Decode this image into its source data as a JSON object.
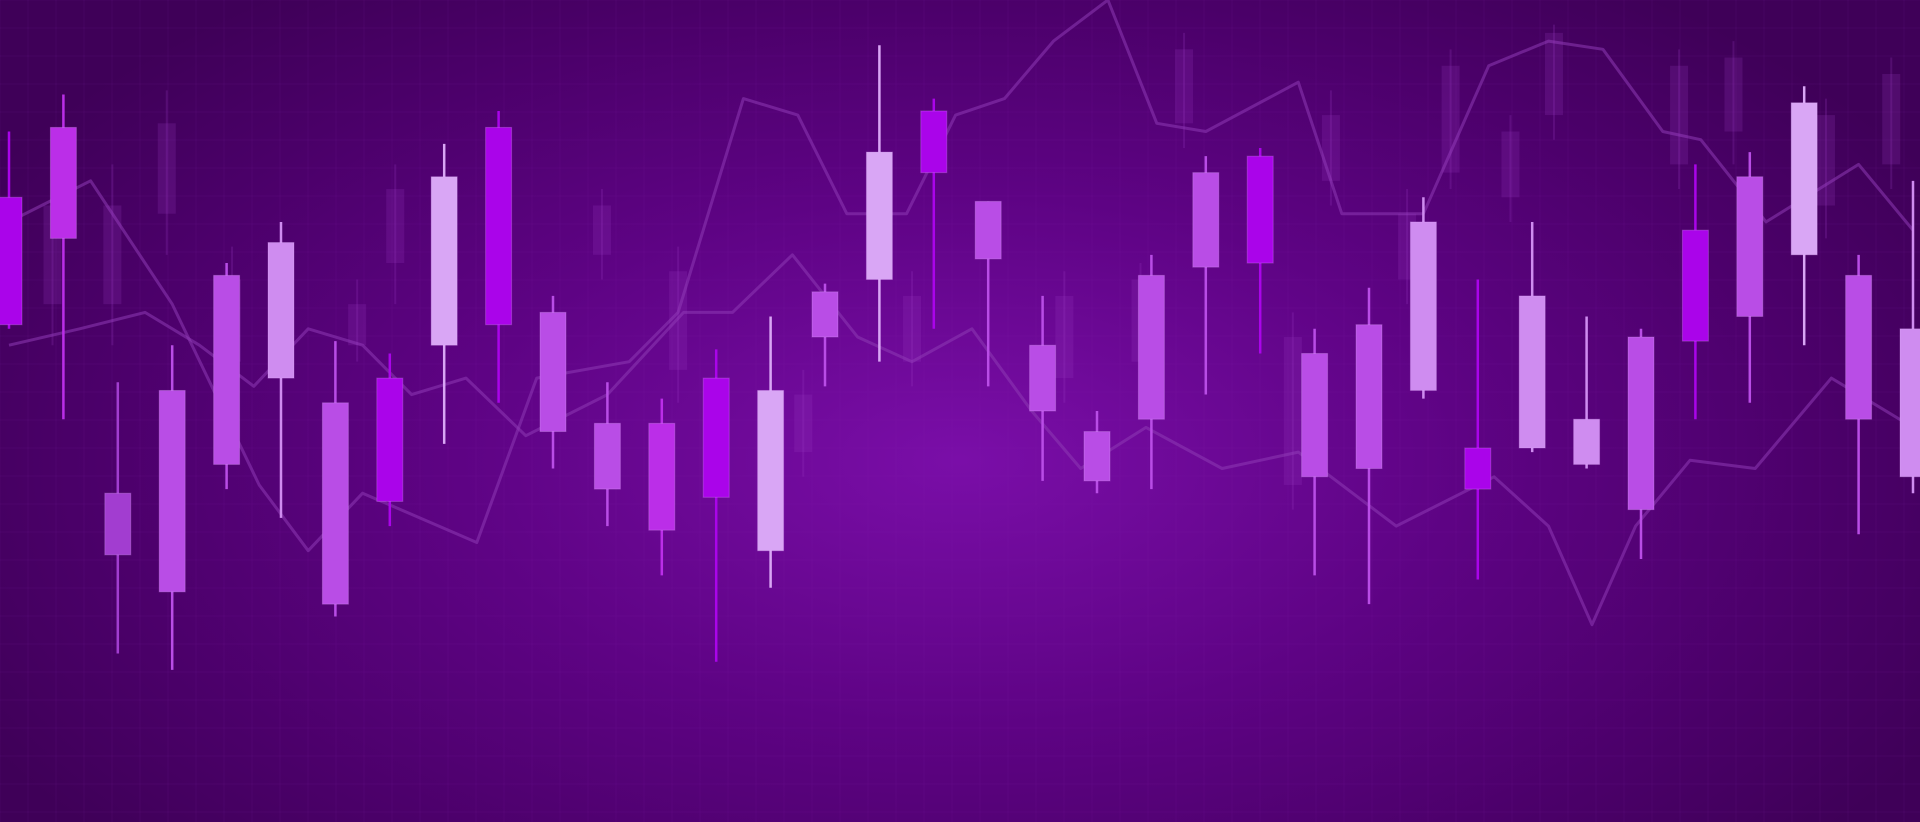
{
  "colors": {
    "background": "#3f0058",
    "background_glow": "#7a0ea8",
    "grid": "#8a2bb0",
    "background_line": "#8e3ab4",
    "candle_palette": [
      "#aa04ea",
      "#b94de6",
      "#cf8cf0",
      "#bb2ee8",
      "#d9a6f5",
      "#a23dd0"
    ]
  },
  "chart_data": {
    "type": "candlestick",
    "title": "",
    "xlabel": "",
    "ylabel": "",
    "xlim": [
      0,
      35
    ],
    "ylim": [
      0,
      100
    ],
    "grid": true,
    "legend": "none",
    "tick_labels": [],
    "candles": [
      {
        "x": 0,
        "open": 60.5,
        "close": 76.0,
        "high": 84.0,
        "low": 60.0,
        "shade": 0
      },
      {
        "x": 1,
        "open": 71.0,
        "close": 84.5,
        "high": 88.5,
        "low": 49.0,
        "shade": 3
      },
      {
        "x": 2,
        "open": 32.5,
        "close": 40.0,
        "high": 53.5,
        "low": 20.5,
        "shade": 5
      },
      {
        "x": 3,
        "open": 28.0,
        "close": 52.5,
        "high": 58.0,
        "low": 18.5,
        "shade": 1
      },
      {
        "x": 4,
        "open": 43.5,
        "close": 66.5,
        "high": 68.0,
        "low": 40.5,
        "shade": 1
      },
      {
        "x": 5,
        "open": 54.0,
        "close": 70.5,
        "high": 73.0,
        "low": 37.0,
        "shade": 2
      },
      {
        "x": 6,
        "open": 26.5,
        "close": 51.0,
        "high": 58.5,
        "low": 25.0,
        "shade": 1
      },
      {
        "x": 7,
        "open": 39.0,
        "close": 54.0,
        "high": 57.0,
        "low": 36.0,
        "shade": 0
      },
      {
        "x": 8,
        "open": 58.0,
        "close": 78.5,
        "high": 82.5,
        "low": 46.0,
        "shade": 4
      },
      {
        "x": 9,
        "open": 60.5,
        "close": 84.5,
        "high": 86.5,
        "low": 51.0,
        "shade": 0
      },
      {
        "x": 10,
        "open": 47.5,
        "close": 62.0,
        "high": 64.0,
        "low": 43.0,
        "shade": 1
      },
      {
        "x": 11,
        "open": 40.5,
        "close": 48.5,
        "high": 53.5,
        "low": 36.0,
        "shade": 1
      },
      {
        "x": 12,
        "open": 35.5,
        "close": 48.5,
        "high": 51.5,
        "low": 30.0,
        "shade": 3
      },
      {
        "x": 13,
        "open": 39.5,
        "close": 54.0,
        "high": 57.5,
        "low": 19.5,
        "shade": 0
      },
      {
        "x": 14,
        "open": 33.0,
        "close": 52.5,
        "high": 61.5,
        "low": 28.5,
        "shade": 4
      },
      {
        "x": 15,
        "open": 59.0,
        "close": 64.5,
        "high": 65.5,
        "low": 53.0,
        "shade": 1
      },
      {
        "x": 16,
        "open": 66.0,
        "close": 81.5,
        "high": 94.5,
        "low": 56.0,
        "shade": 4
      },
      {
        "x": 17,
        "open": 79.0,
        "close": 86.5,
        "high": 88.0,
        "low": 60.0,
        "shade": 0
      },
      {
        "x": 18,
        "open": 68.5,
        "close": 75.5,
        "high": 75.5,
        "low": 53.0,
        "shade": 1
      },
      {
        "x": 19,
        "open": 50.0,
        "close": 58.0,
        "high": 64.0,
        "low": 41.5,
        "shade": 1
      },
      {
        "x": 20,
        "open": 41.5,
        "close": 47.5,
        "high": 50.0,
        "low": 40.0,
        "shade": 1
      },
      {
        "x": 21,
        "open": 49.0,
        "close": 66.5,
        "high": 69.0,
        "low": 40.5,
        "shade": 1
      },
      {
        "x": 22,
        "open": 67.5,
        "close": 79.0,
        "high": 81.0,
        "low": 52.0,
        "shade": 1
      },
      {
        "x": 23,
        "open": 68.0,
        "close": 81.0,
        "high": 82.0,
        "low": 57.0,
        "shade": 0
      },
      {
        "x": 24,
        "open": 42.0,
        "close": 57.0,
        "high": 60.0,
        "low": 30.0,
        "shade": 1
      },
      {
        "x": 25,
        "open": 43.0,
        "close": 60.5,
        "high": 65.0,
        "low": 26.5,
        "shade": 1
      },
      {
        "x": 26,
        "open": 52.5,
        "close": 73.0,
        "high": 76.0,
        "low": 51.5,
        "shade": 2
      },
      {
        "x": 27,
        "open": 40.5,
        "close": 45.5,
        "high": 66.0,
        "low": 29.5,
        "shade": 0
      },
      {
        "x": 28,
        "open": 45.5,
        "close": 64.0,
        "high": 73.0,
        "low": 45.0,
        "shade": 2
      },
      {
        "x": 29,
        "open": 43.5,
        "close": 49.0,
        "high": 61.5,
        "low": 43.0,
        "shade": 2
      },
      {
        "x": 30,
        "open": 38.0,
        "close": 59.0,
        "high": 60.0,
        "low": 32.0,
        "shade": 1
      },
      {
        "x": 31,
        "open": 58.5,
        "close": 72.0,
        "high": 80.0,
        "low": 49.0,
        "shade": 0
      },
      {
        "x": 32,
        "open": 61.5,
        "close": 78.5,
        "high": 81.5,
        "low": 51.0,
        "shade": 1
      },
      {
        "x": 33,
        "open": 69.0,
        "close": 87.5,
        "high": 89.5,
        "low": 58.0,
        "shade": 4
      },
      {
        "x": 34,
        "open": 49.0,
        "close": 66.5,
        "high": 69.0,
        "low": 35.0,
        "shade": 1
      },
      {
        "x": 35,
        "open": 42.0,
        "close": 60.0,
        "high": 78.0,
        "low": 40.0,
        "shade": 2
      }
    ],
    "background_candles": [
      {
        "x": 0.8,
        "open": 63,
        "close": 75,
        "high": 80,
        "low": 58
      },
      {
        "x": 1.9,
        "open": 63,
        "close": 75,
        "high": 80,
        "low": 58
      },
      {
        "x": 2.9,
        "open": 74,
        "close": 85,
        "high": 89,
        "low": 69
      },
      {
        "x": 4.1,
        "open": 56,
        "close": 66,
        "high": 70,
        "low": 52
      },
      {
        "x": 6.4,
        "open": 58,
        "close": 63,
        "high": 66,
        "low": 56
      },
      {
        "x": 7.1,
        "open": 68,
        "close": 77,
        "high": 80,
        "low": 63
      },
      {
        "x": 10.9,
        "open": 69,
        "close": 75,
        "high": 77,
        "low": 66
      },
      {
        "x": 12.3,
        "open": 55,
        "close": 67,
        "high": 70,
        "low": 51
      },
      {
        "x": 14.6,
        "open": 45,
        "close": 52,
        "high": 55,
        "low": 42
      },
      {
        "x": 16.6,
        "open": 56,
        "close": 64,
        "high": 67,
        "low": 53
      },
      {
        "x": 19.4,
        "open": 54,
        "close": 64,
        "high": 67,
        "low": 51
      },
      {
        "x": 20.8,
        "open": 56,
        "close": 66,
        "high": 68,
        "low": 53
      },
      {
        "x": 21.6,
        "open": 85,
        "close": 94,
        "high": 96,
        "low": 82
      },
      {
        "x": 23.6,
        "open": 41,
        "close": 59,
        "high": 62,
        "low": 38
      },
      {
        "x": 24.3,
        "open": 78,
        "close": 86,
        "high": 89,
        "low": 75
      },
      {
        "x": 25.7,
        "open": 66,
        "close": 74,
        "high": 77,
        "low": 63
      },
      {
        "x": 26.5,
        "open": 79,
        "close": 92,
        "high": 94,
        "low": 77
      },
      {
        "x": 27.6,
        "open": 76,
        "close": 84,
        "high": 86,
        "low": 73
      },
      {
        "x": 28.4,
        "open": 86,
        "close": 96,
        "high": 97,
        "low": 83
      },
      {
        "x": 30.7,
        "open": 80,
        "close": 92,
        "high": 94,
        "low": 77
      },
      {
        "x": 31.7,
        "open": 84,
        "close": 93,
        "high": 95,
        "low": 80
      },
      {
        "x": 33.4,
        "open": 75,
        "close": 86,
        "high": 88,
        "low": 71
      },
      {
        "x": 34.6,
        "open": 80,
        "close": 91,
        "high": 93,
        "low": 77
      }
    ],
    "background_lines": [
      {
        "points": [
          [
            0,
            73
          ],
          [
            1.5,
            78
          ],
          [
            3,
            63
          ],
          [
            4.6,
            41
          ],
          [
            5.5,
            33
          ],
          [
            6.5,
            40
          ],
          [
            8.6,
            34
          ],
          [
            9.7,
            54
          ],
          [
            11.4,
            56
          ],
          [
            12.3,
            62
          ],
          [
            13.5,
            88
          ],
          [
            14.5,
            86
          ],
          [
            15.4,
            74
          ],
          [
            16.5,
            74
          ],
          [
            17.4,
            86
          ],
          [
            18.3,
            88
          ],
          [
            19.2,
            95
          ],
          [
            20.2,
            100
          ],
          [
            21.1,
            85
          ],
          [
            22,
            84
          ],
          [
            23.7,
            90
          ],
          [
            24.5,
            74
          ],
          [
            26,
            74
          ],
          [
            27.2,
            92
          ],
          [
            28.3,
            95
          ],
          [
            29.3,
            94
          ],
          [
            30.4,
            84
          ],
          [
            31.1,
            83
          ],
          [
            32.3,
            73
          ],
          [
            34,
            80
          ],
          [
            35,
            72
          ]
        ]
      },
      {
        "points": [
          [
            0,
            58
          ],
          [
            1.3,
            60
          ],
          [
            2.5,
            62
          ],
          [
            3.5,
            58
          ],
          [
            4.5,
            53
          ],
          [
            5.5,
            60
          ],
          [
            6.5,
            58
          ],
          [
            7.4,
            52
          ],
          [
            8.4,
            54
          ],
          [
            9.5,
            47
          ],
          [
            11,
            52
          ],
          [
            12.4,
            62
          ],
          [
            13.3,
            62
          ],
          [
            14.4,
            69
          ],
          [
            15.6,
            59
          ],
          [
            16.6,
            56
          ],
          [
            17.7,
            60
          ],
          [
            18.8,
            50
          ],
          [
            19.7,
            43
          ],
          [
            20.9,
            48
          ],
          [
            22.3,
            43
          ],
          [
            23.7,
            45
          ],
          [
            25.5,
            36
          ],
          [
            27.3,
            42
          ],
          [
            28.3,
            36
          ],
          [
            29.1,
            24
          ],
          [
            29.9,
            36
          ],
          [
            30.9,
            44
          ],
          [
            32.1,
            43
          ],
          [
            33.5,
            54
          ],
          [
            35,
            48
          ]
        ]
      }
    ]
  }
}
